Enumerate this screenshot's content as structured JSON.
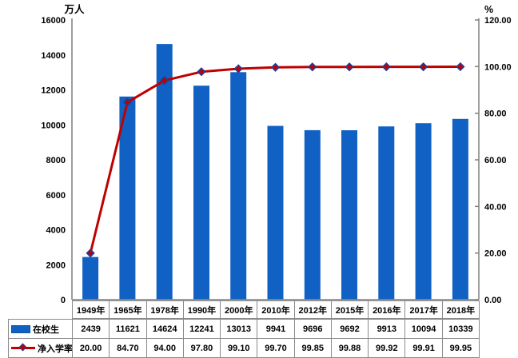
{
  "chart_data": {
    "type": "combo",
    "title": "",
    "categories": [
      "1949年",
      "1965年",
      "1978年",
      "1990年",
      "2000年",
      "2010年",
      "2012年",
      "2015年",
      "2016年",
      "2017年",
      "2018年"
    ],
    "series": [
      {
        "name": "在校生",
        "type": "bar",
        "axis": "left",
        "color": "#1161c4",
        "values": [
          2439,
          11621,
          14624,
          12241,
          13013,
          9941,
          9696,
          9692,
          9913,
          10094,
          10339
        ],
        "labels": [
          "2439",
          "11621",
          "14624",
          "12241",
          "13013",
          "9941",
          "9696",
          "9692",
          "9913",
          "10094",
          "10339"
        ]
      },
      {
        "name": "净入学率",
        "type": "line",
        "axis": "right",
        "color": "#c00000",
        "marker_shape": "diamond",
        "marker_stroke": "#1f3e95",
        "values": [
          20.0,
          84.7,
          94.0,
          97.8,
          99.1,
          99.7,
          99.85,
          99.88,
          99.92,
          99.91,
          99.95
        ],
        "labels": [
          "20.00",
          "84.70",
          "94.00",
          "97.80",
          "99.10",
          "99.70",
          "99.85",
          "99.88",
          "99.92",
          "99.91",
          "99.95"
        ]
      }
    ],
    "left_axis": {
      "title": "万人",
      "min": 0,
      "max": 16000,
      "step": 2000,
      "tick_labels": [
        "0",
        "2000",
        "4000",
        "6000",
        "8000",
        "10000",
        "12000",
        "14000",
        "16000"
      ]
    },
    "right_axis": {
      "title": "%",
      "min": 0,
      "max": 120,
      "step": 20,
      "tick_labels": [
        "0.00",
        "20.00",
        "40.00",
        "60.00",
        "80.00",
        "100.00",
        "120.00"
      ]
    },
    "grid": false,
    "legend_position": "table-left",
    "axis_color": "#7f7f7f",
    "table_border_color": "#8a8a8a"
  }
}
